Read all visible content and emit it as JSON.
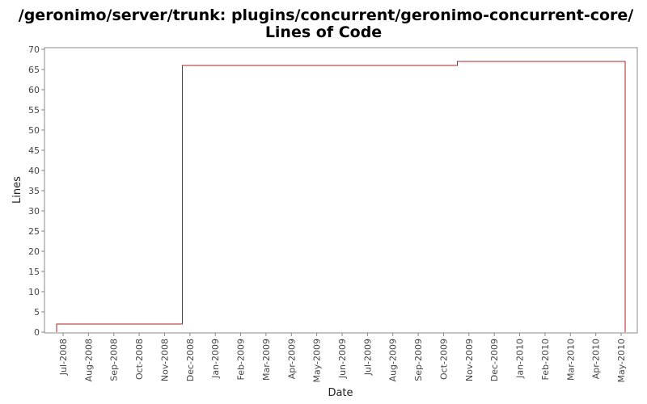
{
  "chart_data": {
    "type": "line",
    "title_line1": "/geronimo/server/trunk: plugins/concurrent/geronimo-concurrent-core/",
    "title_line2": "Lines of Code",
    "xlabel": "Date",
    "ylabel": "Lines",
    "ylim": [
      0,
      70
    ],
    "y_ticks": [
      0,
      5,
      10,
      15,
      20,
      25,
      30,
      35,
      40,
      45,
      50,
      55,
      60,
      65,
      70
    ],
    "x_ticks": [
      "Jul-2008",
      "Aug-2008",
      "Sep-2008",
      "Oct-2008",
      "Nov-2008",
      "Dec-2008",
      "Jan-2009",
      "Feb-2009",
      "Mar-2009",
      "Apr-2009",
      "May-2009",
      "Jun-2009",
      "Jul-2009",
      "Aug-2009",
      "Sep-2009",
      "Oct-2009",
      "Nov-2009",
      "Dec-2009",
      "Jan-2010",
      "Feb-2010",
      "Mar-2010",
      "Apr-2010",
      "May-2010"
    ],
    "series_color": "#b22222",
    "step_points": [
      {
        "date": "Jun-2008",
        "value": 0
      },
      {
        "date": "Jun-2008",
        "value": 2
      },
      {
        "date": "Nov-2008",
        "value": 2
      },
      {
        "date": "Nov-2008",
        "value": 66
      },
      {
        "date": "Oct-2009",
        "value": 66
      },
      {
        "date": "Oct-2009",
        "value": 67
      },
      {
        "date": "May-2010",
        "value": 67
      },
      {
        "date": "May-2010",
        "value": 0
      }
    ],
    "grid": false
  }
}
